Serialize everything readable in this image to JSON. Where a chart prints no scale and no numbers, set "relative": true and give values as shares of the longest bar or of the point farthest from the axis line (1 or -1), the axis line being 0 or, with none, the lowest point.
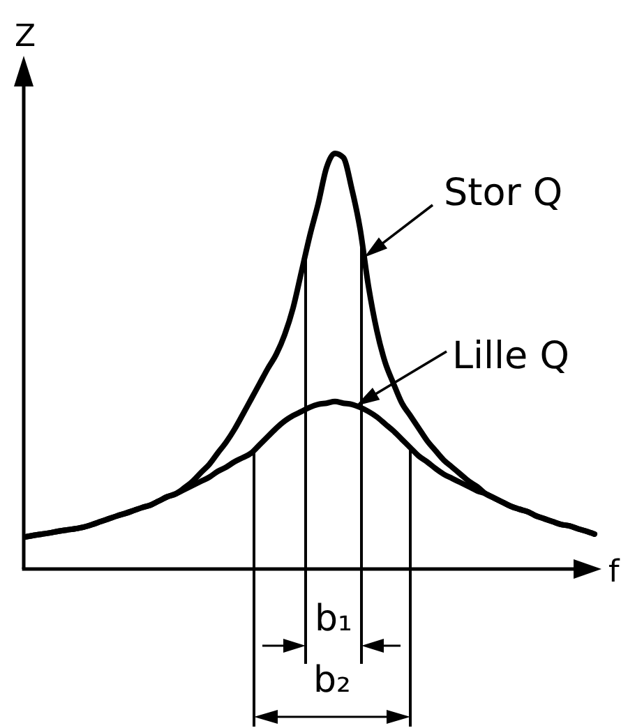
{
  "chart_data": {
    "type": "line",
    "xlabel": "f",
    "ylabel": "Z",
    "relative": true,
    "categories": [
      null,
      null,
      null,
      null,
      null,
      null,
      null,
      null,
      null,
      null,
      null,
      null,
      null,
      null,
      null,
      null,
      null,
      null,
      null,
      null,
      null,
      null,
      null,
      null,
      null,
      null,
      null,
      null,
      null,
      null,
      null,
      null,
      null,
      null,
      null,
      null,
      null,
      null,
      null,
      null,
      null,
      null,
      null,
      null,
      null,
      null,
      null,
      null,
      null,
      null,
      null,
      null,
      null,
      null,
      null,
      null,
      null,
      null,
      null,
      null,
      null,
      null,
      null,
      null,
      null,
      null,
      null,
      null,
      null
    ],
    "series": [
      {
        "name": "Stor Q",
        "color": "#000000",
        "values": [
          0.077,
          0.081,
          0.084,
          0.087,
          0.091,
          0.094,
          0.097,
          0.101,
          0.107,
          0.114,
          0.121,
          0.128,
          0.134,
          0.141,
          0.148,
          0.154,
          0.164,
          0.174,
          0.181,
          0.195,
          0.211,
          0.232,
          0.252,
          0.279,
          0.305,
          0.336,
          0.372,
          0.409,
          0.446,
          0.483,
          0.517,
          0.564,
          0.628,
          0.715,
          0.802,
          0.879,
          0.966,
          1.0,
          0.99,
          0.916,
          0.819,
          0.681,
          0.574,
          0.497,
          0.446,
          0.399,
          0.369,
          0.339,
          0.309,
          0.285,
          0.262,
          0.245,
          0.228,
          0.211,
          0.198,
          0.181,
          0.171,
          0.161,
          0.151,
          0.144,
          0.138,
          0.128,
          0.121,
          0.114,
          0.107,
          0.104,
          0.097,
          0.091,
          0.084
        ]
      },
      {
        "name": "Lille Q",
        "color": "#000000",
        "values": [
          0.077,
          0.081,
          0.084,
          0.087,
          0.091,
          0.094,
          0.097,
          0.101,
          0.107,
          0.114,
          0.121,
          0.128,
          0.134,
          0.141,
          0.148,
          0.154,
          0.164,
          0.174,
          0.181,
          0.191,
          0.201,
          0.211,
          0.221,
          0.235,
          0.245,
          0.258,
          0.268,
          0.279,
          0.299,
          0.319,
          0.339,
          0.356,
          0.369,
          0.379,
          0.389,
          0.396,
          0.399,
          0.403,
          0.399,
          0.396,
          0.389,
          0.379,
          0.366,
          0.349,
          0.332,
          0.312,
          0.292,
          0.272,
          0.258,
          0.242,
          0.228,
          0.218,
          0.208,
          0.198,
          0.188,
          0.181,
          0.171,
          0.161,
          0.151,
          0.144,
          0.138,
          0.128,
          0.121,
          0.114,
          0.107,
          0.104,
          0.097,
          0.091,
          0.084
        ]
      }
    ],
    "annotations": [
      "b₁",
      "b₂"
    ]
  }
}
